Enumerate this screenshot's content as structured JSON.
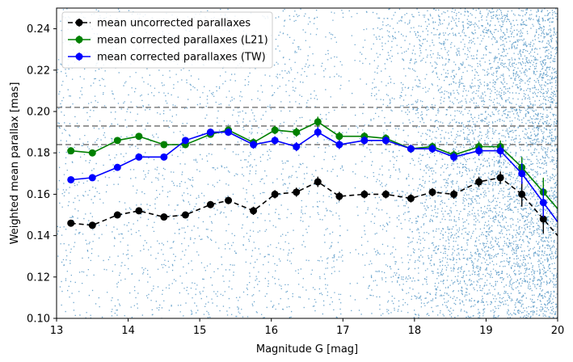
{
  "chart_data": {
    "type": "line",
    "title": "",
    "xlabel": "Magnitude G [mag]",
    "ylabel": "Weighted mean parallax [mas]",
    "xlim": [
      13,
      20
    ],
    "ylim": [
      0.1,
      0.25
    ],
    "xticks": [
      13,
      14,
      15,
      16,
      17,
      18,
      19,
      20
    ],
    "yticks": [
      0.1,
      0.12,
      0.14,
      0.16,
      0.18,
      0.2,
      0.22,
      0.24
    ],
    "xtick_labels": [
      "13",
      "14",
      "15",
      "16",
      "17",
      "18",
      "19",
      "20"
    ],
    "ytick_labels": [
      "0.10",
      "0.12",
      "0.14",
      "0.16",
      "0.18",
      "0.20",
      "0.22",
      "0.24"
    ],
    "grid": false,
    "legend_position": "top-left",
    "reference_lines": [
      0.202,
      0.193,
      0.184
    ],
    "reference_line_color": "#808080",
    "scatter_color": "#1f77b4",
    "x": [
      13.2,
      13.5,
      13.85,
      14.15,
      14.5,
      14.8,
      15.15,
      15.4,
      15.75,
      16.05,
      16.35,
      16.65,
      16.95,
      17.3,
      17.6,
      17.95,
      18.25,
      18.55,
      18.9,
      19.2,
      19.5,
      19.8
    ],
    "series": [
      {
        "name": "mean uncorrected parallaxes",
        "color": "#000000",
        "dashed": true,
        "values": [
          0.146,
          0.145,
          0.15,
          0.152,
          0.149,
          0.15,
          0.155,
          0.157,
          0.152,
          0.16,
          0.161,
          0.166,
          0.159,
          0.16,
          0.16,
          0.158,
          0.161,
          0.16,
          0.166,
          0.168,
          0.16,
          0.148
        ],
        "errors": [
          0.0015,
          0.0015,
          0.0015,
          0.0015,
          0.0015,
          0.0015,
          0.0017,
          0.0018,
          0.002,
          0.002,
          0.0022,
          0.0025,
          0.0022,
          0.002,
          0.002,
          0.002,
          0.002,
          0.0022,
          0.0025,
          0.003,
          0.006,
          0.007
        ]
      },
      {
        "name": "mean corrected parallaxes (L21)",
        "color": "#008000",
        "dashed": false,
        "values": [
          0.181,
          0.18,
          0.186,
          0.188,
          0.184,
          0.184,
          0.189,
          0.191,
          0.185,
          0.191,
          0.19,
          0.195,
          0.188,
          0.188,
          0.187,
          0.182,
          0.183,
          0.179,
          0.183,
          0.183,
          0.173,
          0.161
        ],
        "errors": [
          0.0015,
          0.0015,
          0.0015,
          0.0015,
          0.0015,
          0.0015,
          0.0017,
          0.0018,
          0.002,
          0.002,
          0.0022,
          0.0025,
          0.0022,
          0.002,
          0.002,
          0.002,
          0.002,
          0.0022,
          0.0025,
          0.003,
          0.005,
          0.007
        ]
      },
      {
        "name": "mean corrected parallaxes (TW)",
        "color": "#0000ff",
        "dashed": false,
        "values": [
          0.167,
          0.168,
          0.173,
          0.178,
          0.178,
          0.186,
          0.19,
          0.19,
          0.184,
          0.186,
          0.183,
          0.19,
          0.184,
          0.186,
          0.186,
          0.182,
          0.182,
          0.178,
          0.181,
          0.181,
          0.17,
          0.156
        ],
        "errors": [
          0.0015,
          0.0015,
          0.0015,
          0.0015,
          0.0015,
          0.0015,
          0.0017,
          0.0018,
          0.002,
          0.002,
          0.0022,
          0.0025,
          0.0022,
          0.002,
          0.002,
          0.002,
          0.002,
          0.0022,
          0.0025,
          0.003,
          0.005,
          0.007
        ]
      }
    ]
  }
}
